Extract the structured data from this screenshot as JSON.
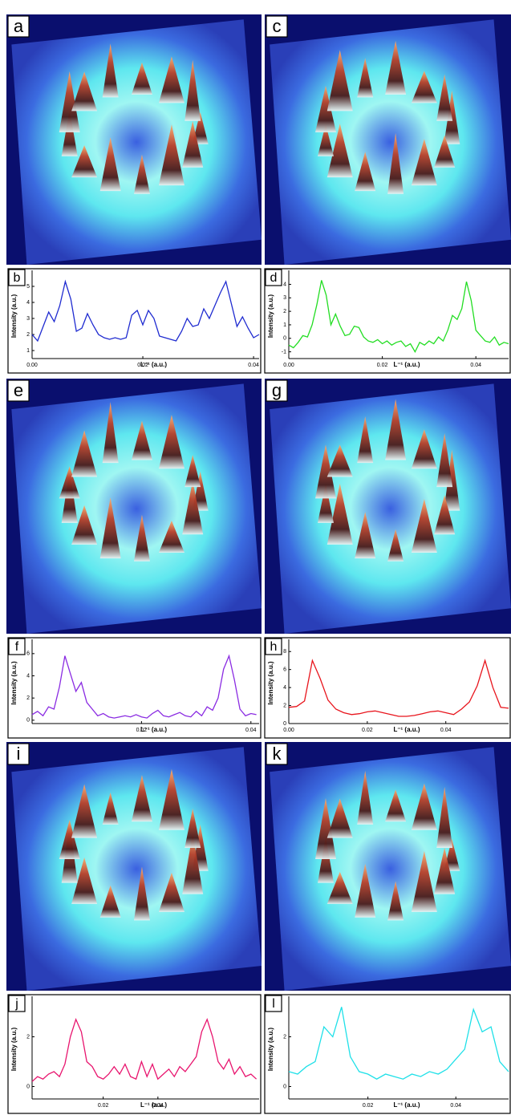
{
  "images": [
    {
      "panel_label": "a"
    },
    {
      "panel_label": "c"
    },
    {
      "panel_label": "e"
    },
    {
      "panel_label": "g"
    },
    {
      "panel_label": "i"
    },
    {
      "panel_label": "k"
    }
  ],
  "chart_data": [
    {
      "type": "line",
      "panel_label": "b",
      "ylabel": "Intensity (a.u.)",
      "xlabel": "L⁻¹ (a.u.)",
      "color": "#1f2bd0",
      "xlim": [
        0,
        0.041
      ],
      "ylim": [
        0.5,
        5.8
      ],
      "xticks": [
        {
          "value": 0,
          "label": "0.00"
        },
        0.02,
        0.04
      ],
      "yticks": [
        1,
        2,
        3,
        4,
        5
      ],
      "x": [
        0,
        0.001,
        0.002,
        0.003,
        0.004,
        0.005,
        0.006,
        0.007,
        0.008,
        0.009,
        0.01,
        0.011,
        0.012,
        0.013,
        0.014,
        0.015,
        0.016,
        0.017,
        0.018,
        0.019,
        0.02,
        0.021,
        0.022,
        0.023,
        0.024,
        0.025,
        0.026,
        0.027,
        0.028,
        0.029,
        0.03,
        0.031,
        0.032,
        0.033,
        0.034,
        0.035,
        0.036,
        0.037,
        0.038,
        0.039,
        0.04,
        0.041
      ],
      "values": [
        2.0,
        1.6,
        2.5,
        3.4,
        2.8,
        3.8,
        5.3,
        4.2,
        2.2,
        2.4,
        3.3,
        2.6,
        2.0,
        1.8,
        1.7,
        1.8,
        1.7,
        1.8,
        3.2,
        3.5,
        2.6,
        3.5,
        3.0,
        1.9,
        1.8,
        1.7,
        1.6,
        2.2,
        3.0,
        2.5,
        2.6,
        3.6,
        3.0,
        3.8,
        4.6,
        5.3,
        3.9,
        2.5,
        3.1,
        2.4,
        1.8,
        2.0
      ]
    },
    {
      "type": "line",
      "panel_label": "d",
      "ylabel": "Intensity (a.u.)",
      "xlabel": "L⁻¹ (a.u.)",
      "color": "#22dd22",
      "xlim": [
        0,
        0.047
      ],
      "ylim": [
        -1.5,
        4.8
      ],
      "xticks": [
        {
          "value": 0,
          "label": "0.00"
        },
        0.02,
        0.04
      ],
      "yticks": [
        -1,
        0,
        1,
        2,
        3,
        4
      ],
      "x": [
        0,
        0.001,
        0.002,
        0.003,
        0.004,
        0.005,
        0.006,
        0.007,
        0.008,
        0.009,
        0.01,
        0.011,
        0.012,
        0.013,
        0.014,
        0.015,
        0.016,
        0.017,
        0.018,
        0.019,
        0.02,
        0.021,
        0.022,
        0.023,
        0.024,
        0.025,
        0.026,
        0.027,
        0.028,
        0.029,
        0.03,
        0.031,
        0.032,
        0.033,
        0.034,
        0.035,
        0.036,
        0.037,
        0.038,
        0.039,
        0.04,
        0.041,
        0.042,
        0.043,
        0.044,
        0.045,
        0.046,
        0.047
      ],
      "values": [
        -0.5,
        -0.7,
        -0.3,
        0.2,
        0.1,
        1.0,
        2.5,
        4.3,
        3.2,
        1.0,
        1.8,
        0.9,
        0.2,
        0.3,
        0.9,
        0.8,
        0.1,
        -0.2,
        -0.3,
        -0.1,
        -0.4,
        -0.2,
        -0.5,
        -0.3,
        -0.2,
        -0.6,
        -0.4,
        -1.0,
        -0.3,
        -0.5,
        -0.2,
        -0.4,
        0.1,
        -0.2,
        0.6,
        1.7,
        1.4,
        2.2,
        4.2,
        2.8,
        0.6,
        0.2,
        -0.2,
        -0.3,
        0.1,
        -0.5,
        -0.3,
        -0.4
      ]
    },
    {
      "type": "line",
      "panel_label": "f",
      "ylabel": "Intensity (a.u.)",
      "xlabel": "L⁻¹ (a.u.)",
      "color": "#8a2be2",
      "xlim": [
        0,
        0.0415
      ],
      "ylim": [
        -0.3,
        7
      ],
      "xticks": [
        0.02,
        0.04
      ],
      "yticks": [
        0,
        2,
        4,
        6
      ],
      "x": [
        0,
        0.001,
        0.002,
        0.003,
        0.004,
        0.005,
        0.006,
        0.007,
        0.008,
        0.009,
        0.01,
        0.011,
        0.012,
        0.013,
        0.014,
        0.015,
        0.016,
        0.017,
        0.018,
        0.019,
        0.02,
        0.021,
        0.022,
        0.023,
        0.024,
        0.025,
        0.026,
        0.027,
        0.028,
        0.029,
        0.03,
        0.031,
        0.032,
        0.033,
        0.034,
        0.035,
        0.036,
        0.037,
        0.038,
        0.039,
        0.04,
        0.041
      ],
      "values": [
        0.5,
        0.8,
        0.4,
        1.2,
        1.0,
        3.0,
        5.8,
        4.2,
        2.6,
        3.4,
        1.6,
        1.0,
        0.4,
        0.6,
        0.3,
        0.2,
        0.3,
        0.4,
        0.3,
        0.5,
        0.3,
        0.2,
        0.6,
        0.9,
        0.4,
        0.3,
        0.5,
        0.7,
        0.4,
        0.3,
        0.8,
        0.4,
        1.2,
        0.9,
        2.0,
        4.6,
        5.8,
        3.6,
        1.0,
        0.4,
        0.6,
        0.5
      ]
    },
    {
      "type": "line",
      "panel_label": "h",
      "ylabel": "Intensity (a.u.)",
      "xlabel": "L⁻¹ (a.u.)",
      "color": "#e8141c",
      "xlim": [
        0,
        0.056
      ],
      "ylim": [
        0,
        9
      ],
      "xticks": [
        {
          "value": 0,
          "label": "0.00"
        },
        0.02,
        0.04
      ],
      "yticks": [
        0,
        2,
        4,
        6,
        8
      ],
      "x": [
        0,
        0.002,
        0.004,
        0.006,
        0.008,
        0.01,
        0.012,
        0.014,
        0.016,
        0.018,
        0.02,
        0.022,
        0.024,
        0.026,
        0.028,
        0.03,
        0.032,
        0.034,
        0.036,
        0.038,
        0.04,
        0.042,
        0.044,
        0.046,
        0.048,
        0.05,
        0.052,
        0.054,
        0.056
      ],
      "values": [
        1.8,
        1.9,
        2.5,
        7.0,
        5.0,
        2.6,
        1.6,
        1.2,
        1.0,
        1.1,
        1.3,
        1.4,
        1.2,
        1.0,
        0.8,
        0.8,
        0.9,
        1.1,
        1.3,
        1.4,
        1.2,
        1.0,
        1.6,
        2.4,
        4.2,
        7.0,
        4.0,
        1.8,
        1.7
      ]
    },
    {
      "type": "line",
      "panel_label": "j",
      "ylabel": "Intensity (a.u.)",
      "xlabel": "L⁻¹ (a.u.)",
      "color": "#e8146e",
      "xlim": [
        -0.006,
        0.077
      ],
      "ylim": [
        -0.5,
        3.5
      ],
      "xticks": [
        0.02,
        0.04
      ],
      "yticks": [
        0,
        2
      ],
      "x": [
        -0.006,
        -0.004,
        -0.002,
        0,
        0.002,
        0.004,
        0.006,
        0.008,
        0.01,
        0.012,
        0.014,
        0.016,
        0.018,
        0.02,
        0.022,
        0.024,
        0.026,
        0.028,
        0.03,
        0.032,
        0.034,
        0.036,
        0.038,
        0.04,
        0.042,
        0.044,
        0.046,
        0.048,
        0.05,
        0.052,
        0.054,
        0.056,
        0.058,
        0.06,
        0.062,
        0.064,
        0.066,
        0.068,
        0.07,
        0.072,
        0.074,
        0.076
      ],
      "values": [
        0.2,
        0.4,
        0.3,
        0.5,
        0.6,
        0.4,
        0.9,
        2.0,
        2.7,
        2.2,
        1.0,
        0.8,
        0.4,
        0.3,
        0.5,
        0.8,
        0.5,
        0.9,
        0.4,
        0.3,
        1.0,
        0.4,
        0.9,
        0.3,
        0.5,
        0.7,
        0.4,
        0.8,
        0.6,
        0.9,
        1.2,
        2.2,
        2.7,
        2.0,
        1.0,
        0.7,
        1.1,
        0.5,
        0.8,
        0.4,
        0.5,
        0.3
      ]
    },
    {
      "type": "line",
      "panel_label": "l",
      "ylabel": "Intensity (a.u.)",
      "xlabel": "L⁻¹ (a.u.)",
      "color": "#1ee0e8",
      "xlim": [
        0.002,
        0.052
      ],
      "ylim": [
        -0.5,
        3.5
      ],
      "xticks": [
        0.02,
        0.04
      ],
      "yticks": [
        0,
        2
      ],
      "x": [
        0.002,
        0.004,
        0.006,
        0.008,
        0.01,
        0.012,
        0.014,
        0.016,
        0.018,
        0.02,
        0.022,
        0.024,
        0.026,
        0.028,
        0.03,
        0.032,
        0.034,
        0.036,
        0.038,
        0.04,
        0.042,
        0.044,
        0.046,
        0.048,
        0.05,
        0.052
      ],
      "values": [
        0.6,
        0.5,
        0.8,
        1.0,
        2.4,
        2.0,
        3.2,
        1.2,
        0.6,
        0.5,
        0.3,
        0.5,
        0.4,
        0.3,
        0.5,
        0.4,
        0.6,
        0.5,
        0.7,
        1.1,
        1.5,
        3.1,
        2.2,
        2.4,
        1.0,
        0.6
      ]
    }
  ]
}
